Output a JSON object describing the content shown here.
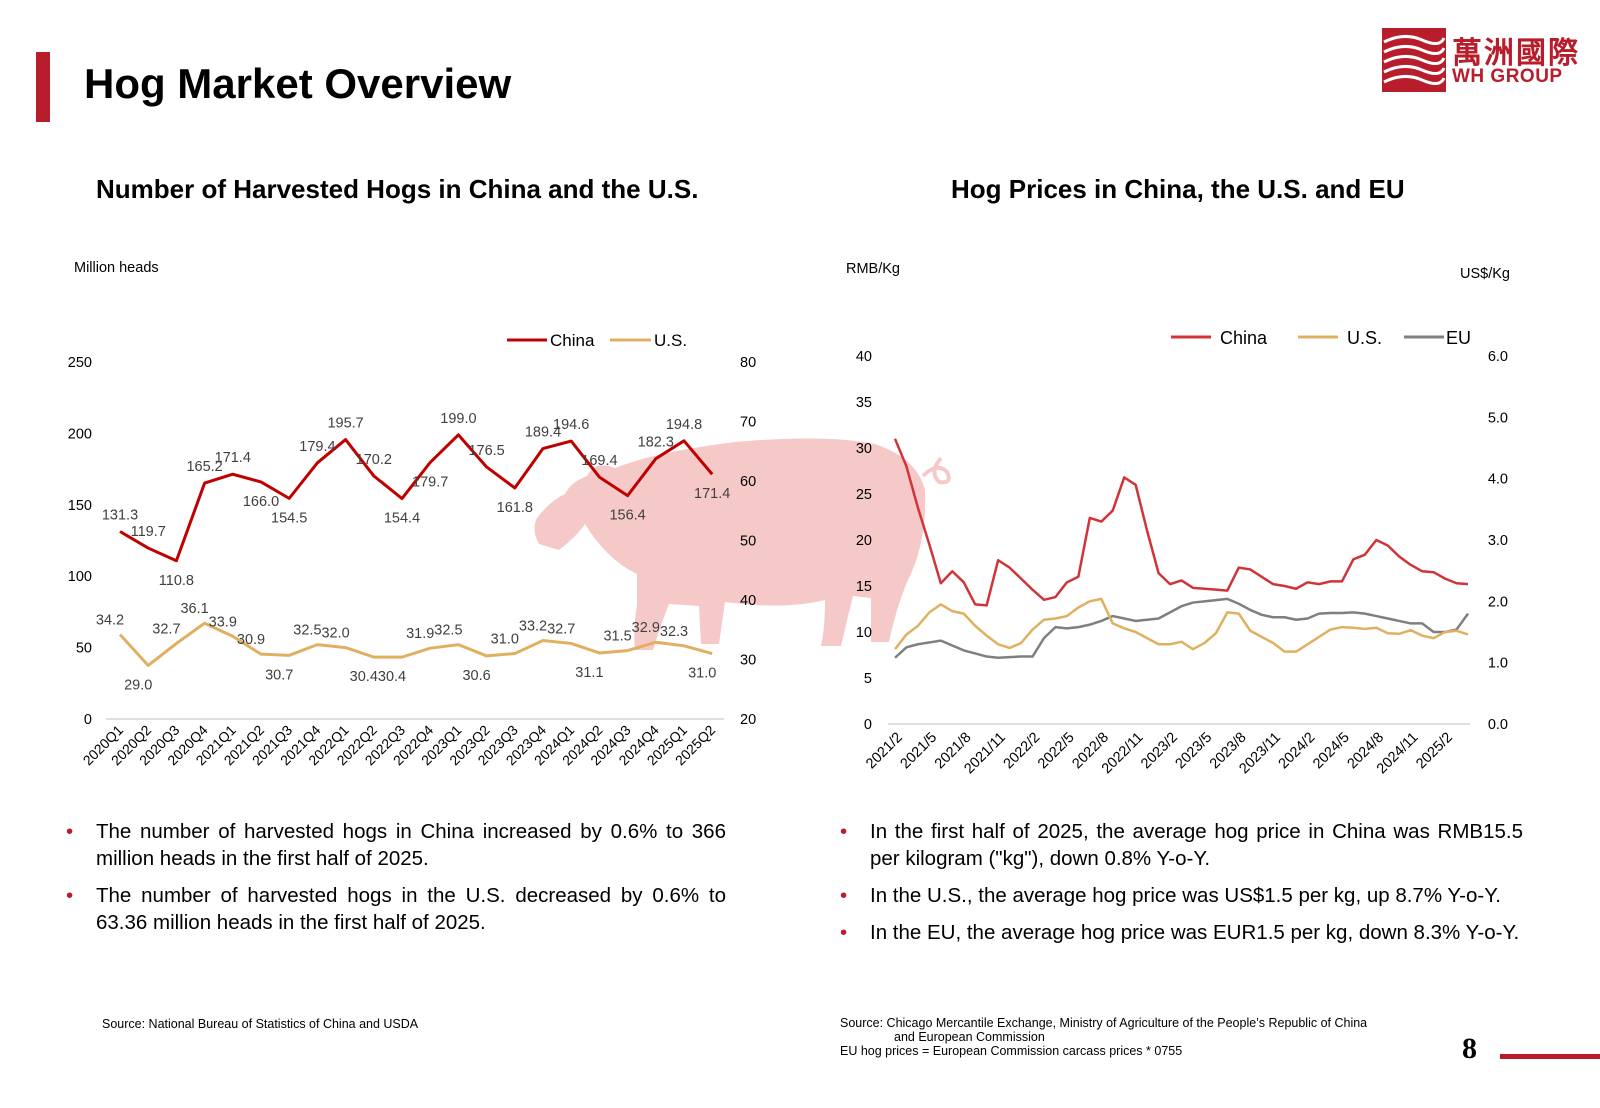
{
  "header": {
    "title": "Hog Market Overview",
    "logo_cn": "萬洲國際",
    "logo_en": "WH GROUP"
  },
  "colors": {
    "accent": "#b81d2c",
    "china": "#c00000",
    "china_price": "#d13438",
    "us": "#e0b060",
    "eu": "#7f7f7f",
    "pig": "#f6c9c9",
    "axis": "#bfbfbf"
  },
  "left_panel": {
    "title": "Number of Harvested Hogs in China and the U.S.",
    "bullets": [
      "The number of harvested hogs in China increased by 0.6% to 366 million heads in the first half of 2025.",
      "The number of harvested hogs in the U.S. decreased by 0.6% to 63.36 million heads in the first half of 2025."
    ],
    "source": "Source: National Bureau of Statistics of China and USDA"
  },
  "right_panel": {
    "title": "Hog Prices in China, the U.S. and EU",
    "bullets": [
      "In the first half of 2025, the average hog price in China was RMB15.5 per kilogram (\"kg\"), down  0.8% Y-o-Y.",
      "In the U.S., the average hog price was US$1.5 per kg, up 8.7% Y-o-Y.",
      "In the EU, the average hog price was EUR1.5 per kg, down 8.3% Y-o-Y."
    ],
    "source_lines": [
      "Source: Chicago Mercantile Exchange, Ministry of Agriculture of the People’s Republic of China",
      "and European Commission",
      "EU hog prices = European Commission carcass prices * 0755"
    ]
  },
  "page_number": "8",
  "chart_data": [
    {
      "type": "line",
      "title": "Number of Harvested Hogs in China and the U.S.",
      "ylabel": "Million heads",
      "categories": [
        "2020Q1",
        "2020Q2",
        "2020Q3",
        "2020Q4",
        "2021Q1",
        "2021Q2",
        "2021Q3",
        "2021Q4",
        "2022Q1",
        "2022Q2",
        "2022Q3",
        "2022Q4",
        "2023Q1",
        "2023Q2",
        "2023Q3",
        "2023Q4",
        "2024Q1",
        "2024Q2",
        "2024Q3",
        "2024Q4",
        "2025Q1",
        "2025Q2"
      ],
      "y_left": {
        "min": 0,
        "max": 250,
        "ticks": [
          0,
          50,
          100,
          150,
          200,
          250
        ]
      },
      "y_right": {
        "min": 20,
        "max": 80,
        "ticks": [
          20,
          30,
          40,
          50,
          60,
          70,
          80
        ]
      },
      "legend": "top-right",
      "series": [
        {
          "name": "China",
          "axis": "left",
          "values": [
            131.3,
            119.7,
            110.8,
            165.2,
            171.4,
            166.0,
            154.5,
            179.4,
            195.7,
            170.2,
            154.4,
            179.7,
            199.0,
            176.5,
            161.8,
            189.4,
            194.6,
            169.4,
            156.4,
            182.3,
            194.8,
            171.4
          ]
        },
        {
          "name": "U.S.",
          "axis": "right",
          "values": [
            34.2,
            29.0,
            32.7,
            36.1,
            33.9,
            30.9,
            30.7,
            32.5,
            32.0,
            30.4,
            30.4,
            31.9,
            32.5,
            30.6,
            31.0,
            33.2,
            32.7,
            31.1,
            31.5,
            32.9,
            32.3,
            31.0
          ]
        }
      ]
    },
    {
      "type": "line",
      "title": "Hog Prices in China, the U.S. and EU",
      "ylabel": "RMB/Kg",
      "y2label": "US$/Kg",
      "x_tick_labels": [
        "2021/2",
        "2021/5",
        "2021/8",
        "2021/11",
        "2022/2",
        "2022/5",
        "2022/8",
        "2022/11",
        "2023/2",
        "2023/5",
        "2023/8",
        "2023/11",
        "2024/2",
        "2024/5",
        "2024/8",
        "2024/11",
        "2025/2"
      ],
      "y_left": {
        "min": 0,
        "max": 40,
        "ticks": [
          0,
          5,
          10,
          15,
          20,
          25,
          30,
          35,
          40
        ]
      },
      "y_right": {
        "min": 0.0,
        "max": 6.0,
        "ticks": [
          "0.0",
          "1.0",
          "2.0",
          "3.0",
          "4.0",
          "5.0",
          "6.0"
        ]
      },
      "legend": "top-right",
      "series": [
        {
          "name": "China",
          "axis": "left",
          "values": [
            31.0,
            28.0,
            23.5,
            19.5,
            15.3,
            16.6,
            15.4,
            13.0,
            12.9,
            17.8,
            17.0,
            15.8,
            14.6,
            13.5,
            13.8,
            15.4,
            16.0,
            22.4,
            22.0,
            23.2,
            26.8,
            26.0,
            21.0,
            16.4,
            15.2,
            15.6,
            14.8,
            14.7,
            14.6,
            14.5,
            17.0,
            16.8,
            16.0,
            15.2,
            15.0,
            14.7,
            15.4,
            15.2,
            15.5,
            15.5,
            17.9,
            18.4,
            20.0,
            19.4,
            18.2,
            17.3,
            16.6,
            16.5,
            15.8,
            15.3,
            15.2
          ]
        },
        {
          "name": "U.S.",
          "axis": "right",
          "values": [
            1.22,
            1.46,
            1.6,
            1.82,
            1.95,
            1.84,
            1.8,
            1.6,
            1.44,
            1.3,
            1.24,
            1.32,
            1.54,
            1.7,
            1.72,
            1.76,
            1.9,
            2.0,
            2.04,
            1.64,
            1.56,
            1.5,
            1.4,
            1.3,
            1.3,
            1.34,
            1.22,
            1.32,
            1.48,
            1.82,
            1.8,
            1.52,
            1.42,
            1.32,
            1.18,
            1.18,
            1.3,
            1.42,
            1.54,
            1.58,
            1.57,
            1.55,
            1.57,
            1.48,
            1.47,
            1.53,
            1.44,
            1.4,
            1.5,
            1.52,
            1.46
          ]
        },
        {
          "name": "EU",
          "axis": "right",
          "values": [
            1.08,
            1.25,
            1.3,
            1.33,
            1.36,
            1.28,
            1.2,
            1.15,
            1.1,
            1.08,
            1.09,
            1.1,
            1.1,
            1.4,
            1.58,
            1.56,
            1.58,
            1.62,
            1.68,
            1.76,
            1.72,
            1.68,
            1.7,
            1.72,
            1.82,
            1.92,
            1.98,
            2.0,
            2.02,
            2.04,
            1.96,
            1.86,
            1.78,
            1.74,
            1.74,
            1.7,
            1.72,
            1.8,
            1.81,
            1.81,
            1.82,
            1.8,
            1.76,
            1.72,
            1.68,
            1.64,
            1.64,
            1.5,
            1.5,
            1.54,
            1.8
          ]
        }
      ]
    }
  ]
}
